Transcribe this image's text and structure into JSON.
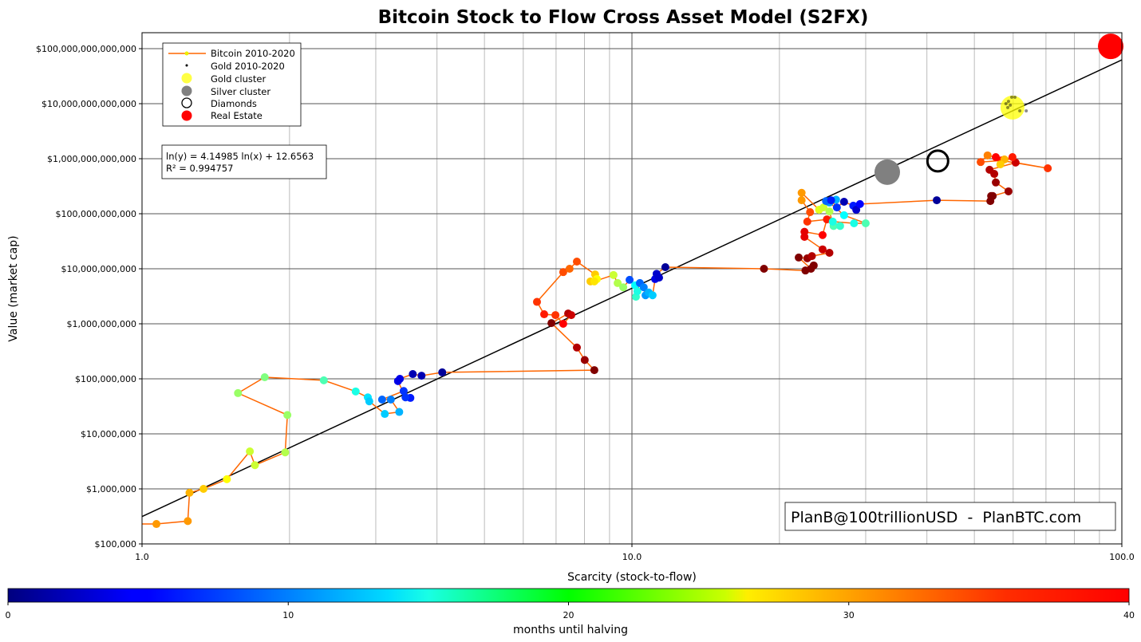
{
  "chart_data": {
    "type": "scatter",
    "title": "Bitcoin Stock to Flow Cross Asset Model (S2FX)",
    "xlabel": "Scarcity (stock-to-flow)",
    "ylabel": "Value (market cap)",
    "x_scale": "log",
    "y_scale": "log",
    "xlim": [
      1.0,
      100.0
    ],
    "ylim": [
      100000,
      195000000000000
    ],
    "x_ticks": [
      "1.0",
      "10.0",
      "100.0"
    ],
    "y_ticks": [
      "$100,000",
      "$1,000,000",
      "$10,000,000",
      "$100,000,000",
      "$1,000,000,000",
      "$10,000,000,000",
      "$100,000,000,000",
      "$1,000,000,000,000",
      "$10,000,000,000,000",
      "$100,000,000,000,000"
    ],
    "grid": true,
    "legend": {
      "placement": "top-left",
      "entries": [
        "Bitcoin 2010-2020",
        "Gold 2010-2020",
        "Gold cluster",
        "Silver cluster",
        "Diamonds",
        "Real Estate"
      ]
    },
    "fit": {
      "equation": "ln(y) = 4.14985 ln(x) + 12.6563",
      "r2": "R² = 0.994757",
      "slope": 4.14985,
      "intercept": 12.6563
    },
    "watermark": "PlanB@100trillionUSD  -  PlanBTC.com",
    "colorbar": {
      "label": "months until halving",
      "range": [
        0,
        40
      ],
      "ticks": [
        "0",
        "10",
        "20",
        "30",
        "40"
      ],
      "colormap": "jet"
    },
    "colors": {
      "bitcoin_line": "#ff6600",
      "gold_cluster": "#ffff00",
      "silver_cluster": "#808080",
      "diamonds": "#000000",
      "real_estate": "#ff0000",
      "fit_line": "#000000"
    },
    "series": [
      {
        "name": "Bitcoin 2010-2020",
        "point_format": [
          "stock_to_flow",
          "market_cap",
          "months_until_halving"
        ],
        "points": [
          [
            1.07,
            230000.0,
            29
          ],
          [
            1.24,
            260000.0,
            29
          ],
          [
            1.25,
            850000.0,
            28
          ],
          [
            1.335,
            1000000.0,
            27
          ],
          [
            1.49,
            1500000.0,
            25
          ],
          [
            1.66,
            4800000.0,
            23
          ],
          [
            1.7,
            2700000.0,
            23
          ],
          [
            1.96,
            4600000.0,
            22
          ],
          [
            1.98,
            22000000.0,
            21
          ],
          [
            1.57,
            55000000.0,
            21
          ],
          [
            1.78,
            107000000.0,
            20
          ],
          [
            2.35,
            94000000.0,
            18
          ],
          [
            2.73,
            59000000.0,
            16
          ],
          [
            2.89,
            46000000.0,
            14
          ],
          [
            2.91,
            39000000.0,
            13
          ],
          [
            3.13,
            23000000.0,
            13
          ],
          [
            3.35,
            25000000.0,
            12
          ],
          [
            3.22,
            42000000.0,
            10
          ],
          [
            3.09,
            42000000.0,
            9
          ],
          [
            3.42,
            60000000.0,
            7
          ],
          [
            3.53,
            45000000.0,
            6
          ],
          [
            3.45,
            46000000.0,
            7
          ],
          [
            3.33,
            91000000.0,
            4
          ],
          [
            3.36,
            100000000.0,
            4
          ],
          [
            3.57,
            122000000.0,
            2
          ],
          [
            3.72,
            114000000.0,
            2
          ],
          [
            4.1,
            131000000.0,
            1
          ],
          [
            8.38,
            144000000.0,
            40
          ],
          [
            8.01,
            220000000.0,
            39
          ],
          [
            7.72,
            370000000.0,
            38
          ],
          [
            6.85,
            1030000000.0,
            40
          ],
          [
            7.41,
            1540000000.0,
            38
          ],
          [
            7.52,
            1440000000.0,
            37
          ],
          [
            7.24,
            1000000000.0,
            35
          ],
          [
            6.98,
            1440000000.0,
            33
          ],
          [
            6.62,
            1490000000.0,
            34
          ],
          [
            6.4,
            2500000000.0,
            33
          ],
          [
            7.24,
            8700000000.0,
            32
          ],
          [
            7.46,
            10000000000.0,
            31
          ],
          [
            7.72,
            13500000000.0,
            32
          ],
          [
            8.41,
            7900000000.0,
            27
          ],
          [
            8.48,
            6500000000.0,
            25
          ],
          [
            8.23,
            5900000000.0,
            27
          ],
          [
            8.38,
            5900000000.0,
            26
          ],
          [
            9.17,
            7700000000.0,
            23
          ],
          [
            9.35,
            5500000000.0,
            22
          ],
          [
            9.6,
            4600000000.0,
            21
          ],
          [
            9.89,
            6300000000.0,
            8
          ],
          [
            10.15,
            5000000000.0,
            15
          ],
          [
            10.19,
            3100000000.0,
            17
          ],
          [
            10.26,
            3900000000.0,
            16
          ],
          [
            10.38,
            5500000000.0,
            9
          ],
          [
            10.57,
            4600000000.0,
            10
          ],
          [
            10.66,
            3300000000.0,
            11
          ],
          [
            10.82,
            3700000000.0,
            12
          ],
          [
            11.02,
            3300000000.0,
            13
          ],
          [
            11.15,
            6500000000.0,
            4
          ],
          [
            11.36,
            6900000000.0,
            3
          ],
          [
            11.23,
            8100000000.0,
            3
          ],
          [
            11.7,
            10700000000.0,
            1
          ],
          [
            18.6,
            10000000000.0,
            40
          ],
          [
            22.6,
            9300000000.0,
            40
          ],
          [
            23.5,
            11500000000.0,
            40
          ],
          [
            23.2,
            10000000000.0,
            40
          ],
          [
            21.9,
            16000000000.0,
            40
          ],
          [
            22.8,
            15500000000.0,
            39
          ],
          [
            23.3,
            17000000000.0,
            38
          ],
          [
            25.3,
            19500000000.0,
            38
          ],
          [
            24.5,
            22500000000.0,
            37
          ],
          [
            22.5,
            38000000000.0,
            36
          ],
          [
            22.5,
            47000000000.0,
            36
          ],
          [
            24.5,
            41000000000.0,
            35
          ],
          [
            25.0,
            79000000000.0,
            34
          ],
          [
            22.8,
            72000000000.0,
            33
          ],
          [
            23.1,
            107000000000.0,
            32
          ],
          [
            22.2,
            176000000000.0,
            29
          ],
          [
            22.2,
            240000000000.0,
            29
          ],
          [
            24.1,
            118000000000.0,
            24
          ],
          [
            24.6,
            130000000000.0,
            23
          ],
          [
            25.3,
            110000000000.0,
            22
          ],
          [
            25.8,
            60000000000.0,
            18
          ],
          [
            26.6,
            60000000000.0,
            17
          ],
          [
            25.7,
            72000000000.0,
            16
          ],
          [
            28.4,
            67000000000.0,
            16
          ],
          [
            30.0,
            67000000000.0,
            18
          ],
          [
            27.1,
            94000000000.0,
            15
          ],
          [
            25.3,
            160000000000.0,
            11
          ],
          [
            26.1,
            180000000000.0,
            12
          ],
          [
            24.9,
            170000000000.0,
            9
          ],
          [
            25.5,
            176000000000.0,
            6
          ],
          [
            26.2,
            130000000000.0,
            7
          ],
          [
            27.1,
            165000000000.0,
            2
          ],
          [
            28.3,
            140000000000.0,
            6
          ],
          [
            28.7,
            118000000000.0,
            3
          ],
          [
            29.2,
            150000000000.0,
            5
          ],
          [
            41.9,
            176000000000.0,
            1
          ],
          [
            53.9,
            170000000000.0,
            40
          ],
          [
            54.1,
            210000000000.0,
            40
          ],
          [
            54.5,
            210000000000.0,
            40
          ],
          [
            58.7,
            255000000000.0,
            39
          ],
          [
            55.3,
            370000000000.0,
            39
          ],
          [
            54.9,
            530000000000.0,
            38
          ],
          [
            53.7,
            630000000000.0,
            38
          ],
          [
            60.7,
            850000000000.0,
            37
          ],
          [
            70.6,
            670000000000.0,
            33
          ],
          [
            56.8,
            930000000000.0,
            34
          ],
          [
            51.5,
            870000000000.0,
            32
          ],
          [
            53.2,
            1150000000000.0,
            30
          ],
          [
            55.3,
            1070000000000.0,
            35
          ],
          [
            57.6,
            970000000000.0,
            28
          ],
          [
            59.8,
            1070000000000.0,
            34
          ],
          [
            56.5,
            790000000000.0,
            27
          ]
        ]
      },
      {
        "name": "Gold 2010-2020",
        "points": [
          [
            59.6,
            13100000000000.0
          ],
          [
            60.5,
            13100000000000.0
          ],
          [
            58.7,
            11000000000000.0
          ],
          [
            58.0,
            10000000000000.0
          ],
          [
            59.2,
            9400000000000.0
          ],
          [
            58.5,
            8500000000000.0
          ],
          [
            61.9,
            7400000000000.0
          ],
          [
            63.8,
            7400000000000.0
          ]
        ]
      },
      {
        "name": "Gold cluster",
        "points": [
          [
            59.8,
            8500000000000.0
          ]
        ]
      },
      {
        "name": "Silver cluster",
        "points": [
          [
            33.2,
            570000000000.0
          ]
        ]
      },
      {
        "name": "Diamonds",
        "points": [
          [
            42.1,
            910000000000.0
          ]
        ]
      },
      {
        "name": "Real Estate",
        "points": [
          [
            94.9,
            110000000000000.0
          ]
        ]
      }
    ]
  }
}
